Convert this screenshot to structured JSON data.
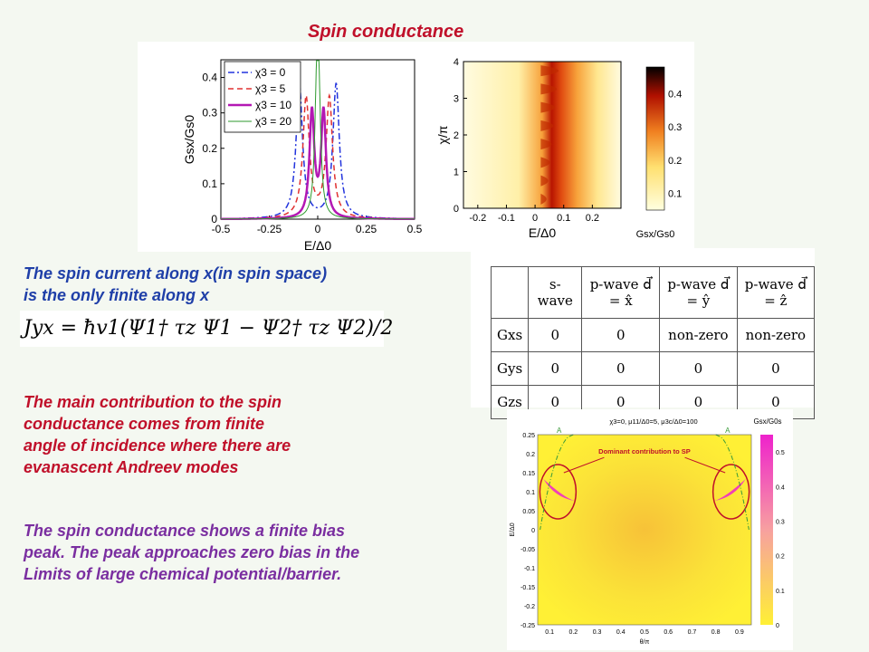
{
  "title": "Spin conductance",
  "text": {
    "spin_current_line1": "The spin current along x(in spin space)",
    "spin_current_line2": "is the only finite along x",
    "equation": "Jyx = ħv1(Ψ1† τz Ψ1 − Ψ2† τz Ψ2)/2",
    "main_contrib_lines": [
      "The main contribution to the spin",
      "conductance comes from finite",
      "angle of incidence where there are",
      "evanascent  Andreev modes"
    ],
    "bias_peak_lines": [
      "The spin conductance shows a finite bias",
      "peak. The peak approaches zero bias in the",
      "Limits of large chemical potential/barrier."
    ]
  },
  "table": {
    "headers": [
      "",
      "s-wave",
      "p-wave d⃗ = x̂",
      "p-wave d⃗ = ŷ",
      "p-wave d⃗ = ẑ"
    ],
    "rows": [
      [
        "Gxs",
        "0",
        "0",
        "non-zero",
        "non-zero"
      ],
      [
        "Gys",
        "0",
        "0",
        "0",
        "0"
      ],
      [
        "Gzs",
        "0",
        "0",
        "0",
        "0"
      ]
    ]
  },
  "chart_data": [
    {
      "type": "line",
      "xlabel": "E/Δ0",
      "ylabel": "Gsx/Gs0",
      "xlim": [
        -0.5,
        0.5
      ],
      "ylim": [
        0,
        0.45
      ],
      "xticks": [
        -0.5,
        -0.25,
        0,
        0.25,
        0.5
      ],
      "yticks": [
        0,
        0.1,
        0.2,
        0.3,
        0.4
      ],
      "legend_position": "top-left",
      "series": [
        {
          "name": "χ3 = 0",
          "color": "#2233dd",
          "dash": "dashdot",
          "width": 1.5,
          "x0": 0.095,
          "w": 0.02,
          "A": 0.38,
          "t": 0.04
        },
        {
          "name": "χ3 = 5",
          "color": "#e03030",
          "dash": "dashed",
          "width": 1.5,
          "x0": 0.06,
          "w": 0.02,
          "A": 0.34,
          "t": 0.025
        },
        {
          "name": "χ3 = 10",
          "color": "#b318b3",
          "dash": "solid",
          "width": 2.5,
          "x0": 0.03,
          "w": 0.015,
          "A": 0.3,
          "t": 0.012
        },
        {
          "name": "χ3 = 20",
          "color": "#2e9a2e",
          "dash": "solid",
          "width": 1,
          "x0": 0.005,
          "w": 0.012,
          "A": 0.3,
          "t": 0.004
        }
      ]
    },
    {
      "type": "heatmap",
      "xlabel": "E/Δ0",
      "ylabel": "χ/π",
      "xlim": [
        -0.25,
        0.3
      ],
      "ylim": [
        0,
        4
      ],
      "xticks": [
        -0.2,
        -0.1,
        0,
        0.1,
        0.2
      ],
      "yticks": [
        0,
        1,
        2,
        3,
        4
      ],
      "colorbar_label": "Gsx/Gs0",
      "colorbar_ticks": [
        0.1,
        0.2,
        0.3,
        0.4
      ],
      "colorbar_range": [
        0.05,
        0.48
      ]
    },
    {
      "type": "heatmap",
      "header": "χ3=0,  μ11/Δ0=5,  μ3c/Δ0=100",
      "annotation": "Dominant contribution to SP",
      "marker_labels": [
        "A",
        "A"
      ],
      "xlabel": "θ/π",
      "ylabel": "E/Δ0",
      "xlim": [
        0.05,
        0.95
      ],
      "ylim": [
        -0.25,
        0.25
      ],
      "xticks": [
        0.1,
        0.2,
        0.3,
        0.4,
        0.5,
        0.6,
        0.7,
        0.8,
        0.9
      ],
      "yticks": [
        0.25,
        0.2,
        0.15,
        0.1,
        0.05,
        0,
        -0.05,
        -0.1,
        -0.15,
        -0.2,
        -0.25
      ],
      "colorbar_label": "Gsx/G0s",
      "colorbar_ticks": [
        0,
        0.1,
        0.2,
        0.3,
        0.4,
        0.5
      ],
      "colorbar_range": [
        0,
        0.55
      ]
    }
  ]
}
